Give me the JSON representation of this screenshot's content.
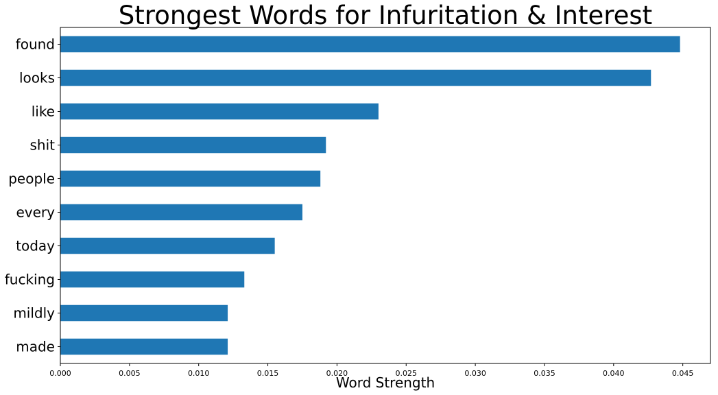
{
  "chart_data": {
    "type": "bar",
    "orientation": "horizontal",
    "title": "Strongest Words for Infuritation & Interest",
    "xlabel": "Word Strength",
    "ylabel": "",
    "categories": [
      "found",
      "looks",
      "like",
      "shit",
      "people",
      "every",
      "today",
      "fucking",
      "mildly",
      "made"
    ],
    "values": [
      0.0448,
      0.0427,
      0.023,
      0.0192,
      0.0188,
      0.0175,
      0.0155,
      0.0133,
      0.0121,
      0.0121
    ],
    "xlim": [
      0,
      0.047
    ],
    "xticks": [
      "0.000",
      "0.005",
      "0.010",
      "0.015",
      "0.020",
      "0.025",
      "0.030",
      "0.035",
      "0.040",
      "0.045"
    ],
    "grid": false,
    "legend": "none",
    "bar_color": "#1f77b4"
  }
}
